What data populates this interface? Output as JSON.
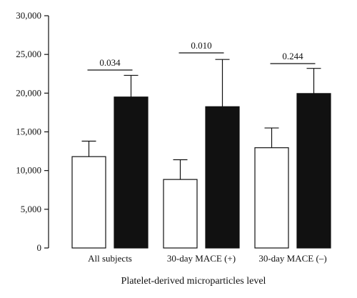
{
  "chart_data": {
    "type": "bar",
    "categories": [
      "All subjects",
      "30-day MACE (+)",
      "30-day MACE (–)"
    ],
    "series": [
      {
        "values": [
          11800,
          8850,
          12950
        ],
        "errors": [
          2000,
          2550,
          2550
        ],
        "color": "#ffffff"
      },
      {
        "values": [
          19500,
          18250,
          19950
        ],
        "errors": [
          2800,
          6100,
          3250
        ],
        "color": "#111111"
      }
    ],
    "xlabel": "Platelet-derived microparticles level",
    "ylabel": "",
    "ylim": [
      0,
      30000
    ],
    "yticks": [
      "0",
      "5,000",
      "10,000",
      "15,000",
      "20,000",
      "25,000",
      "30,000"
    ],
    "p_values": [
      "0.034",
      "0.010",
      "0.244"
    ],
    "grid": false
  }
}
